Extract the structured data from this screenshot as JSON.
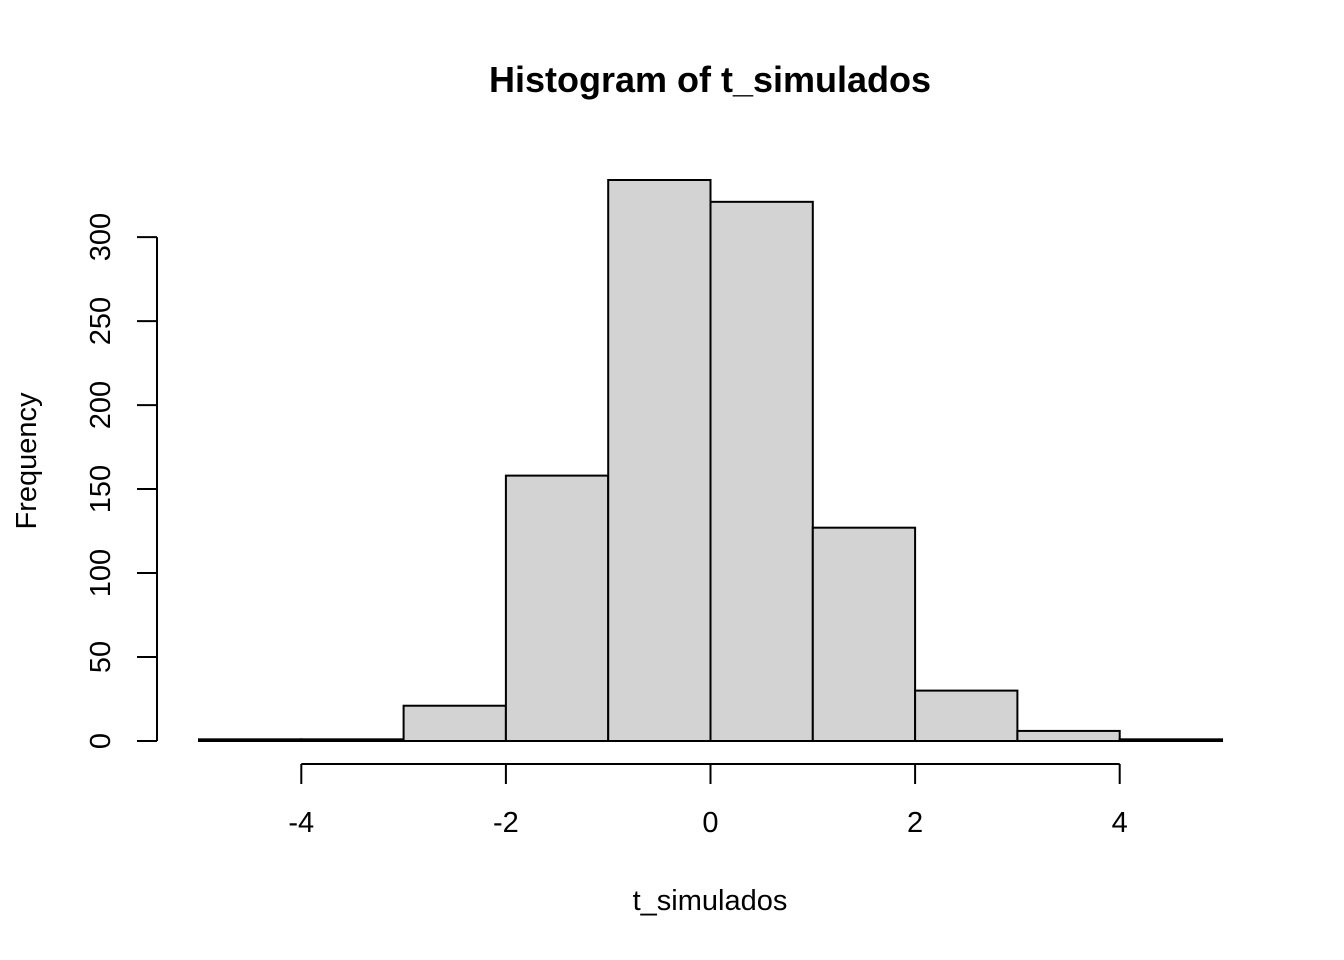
{
  "chart_data": {
    "type": "bar",
    "title": "Histogram of t_simulados",
    "xlabel": "t_simulados",
    "ylabel": "Frequency",
    "bin_edges": [
      -5,
      -4,
      -3,
      -2,
      -1,
      0,
      1,
      2,
      3,
      4,
      5
    ],
    "values": [
      1,
      1,
      21,
      158,
      334,
      321,
      127,
      30,
      6,
      1
    ],
    "xlim": [
      -5,
      5
    ],
    "ylim": [
      0,
      334
    ],
    "x_ticks": [
      -4,
      -2,
      0,
      2,
      4
    ],
    "x_tick_labels": [
      "-4",
      "-2",
      "0",
      "2",
      "4"
    ],
    "y_ticks": [
      0,
      50,
      100,
      150,
      200,
      250,
      300
    ],
    "y_tick_labels": [
      "0",
      "50",
      "100",
      "150",
      "200",
      "250",
      "300"
    ],
    "bar_fill": "#d3d3d3",
    "bar_stroke": "#000000",
    "grid": false,
    "legend": "none"
  }
}
